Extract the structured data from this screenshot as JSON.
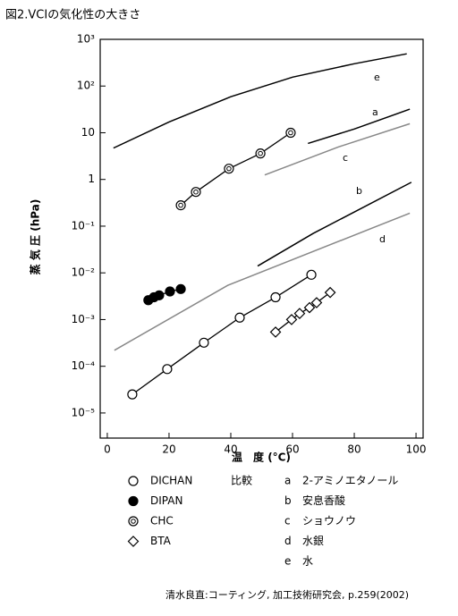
{
  "chart_data": {
    "type": "line",
    "title": "図2.VCIの気化性の大きさ",
    "y_label": "蒸 気 圧 (hPa)",
    "x_label": "温　度 (°C)",
    "source": "清水良直:コーティング, 加工技術研究会, p.259(2002)",
    "comparison_title": "比較",
    "log_y": true,
    "grid": false,
    "xlim": [
      -2.3,
      102.3
    ],
    "ylim": [
      2.9e-06,
      1000
    ],
    "xticks": [
      0,
      20,
      40,
      60,
      80,
      100
    ],
    "yticks": [
      {
        "value": 1e-05,
        "label": "10⁻⁵"
      },
      {
        "value": 0.0001,
        "label": "10⁻⁴"
      },
      {
        "value": 0.001,
        "label": "10⁻³"
      },
      {
        "value": 0.01,
        "label": "10⁻²"
      },
      {
        "value": 0.1,
        "label": "10⁻¹"
      },
      1,
      10,
      {
        "value": 100,
        "label": "10²"
      },
      {
        "value": 1000,
        "label": "10³"
      }
    ],
    "series": [
      {
        "name": "DICHAN",
        "marker": "open-circle",
        "color": "#000000",
        "x": [
          8.1,
          19.4,
          31.3,
          42.9,
          54.5,
          66.1
        ],
        "values": [
          2.5e-05,
          8.7e-05,
          0.00032,
          0.0011,
          0.003,
          0.0091
        ]
      },
      {
        "name": "DIPAN",
        "marker": "filled-circle",
        "color": "#000000",
        "x": [
          13.3,
          15.1,
          16.8,
          20.3,
          23.8
        ],
        "values": [
          0.0026,
          0.003,
          0.0033,
          0.004,
          0.0045
        ]
      },
      {
        "name": "CHC",
        "marker": "double-circle",
        "color": "#000000",
        "x": [
          23.8,
          28.7,
          39.4,
          49.6,
          59.4
        ],
        "values": [
          0.28,
          0.54,
          1.7,
          3.6,
          10
        ]
      },
      {
        "name": "BTA",
        "marker": "diamond",
        "color": "#000000",
        "x": [
          54.5,
          59.7,
          62.3,
          65.5,
          67.8,
          72.2
        ],
        "values": [
          0.00054,
          0.001,
          0.00135,
          0.0018,
          0.0023,
          0.0038
        ]
      },
      {
        "name": "a",
        "description": "2-アミノエタノール",
        "color": "#000000",
        "x": [
          65,
          80,
          98
        ],
        "values": [
          5.9,
          12,
          32
        ]
      },
      {
        "name": "b",
        "description": "安息香酸",
        "color": "#000000",
        "x": [
          48.7,
          66.7,
          98.5
        ],
        "values": [
          0.014,
          0.07,
          0.87
        ]
      },
      {
        "name": "c",
        "description": "ショウノウ",
        "color": "#888888",
        "x": [
          51,
          75,
          98
        ],
        "values": [
          1.25,
          5,
          15.6
        ]
      },
      {
        "name": "d",
        "description": "水銀",
        "color": "#888888",
        "x": [
          2.3,
          39,
          98
        ],
        "values": [
          0.00022,
          0.0054,
          0.19
        ]
      },
      {
        "name": "e",
        "description": "水",
        "color": "#000000",
        "x": [
          2,
          20,
          40,
          60,
          80,
          97
        ],
        "values": [
          4.7,
          17,
          59,
          155,
          300,
          490
        ]
      }
    ]
  }
}
